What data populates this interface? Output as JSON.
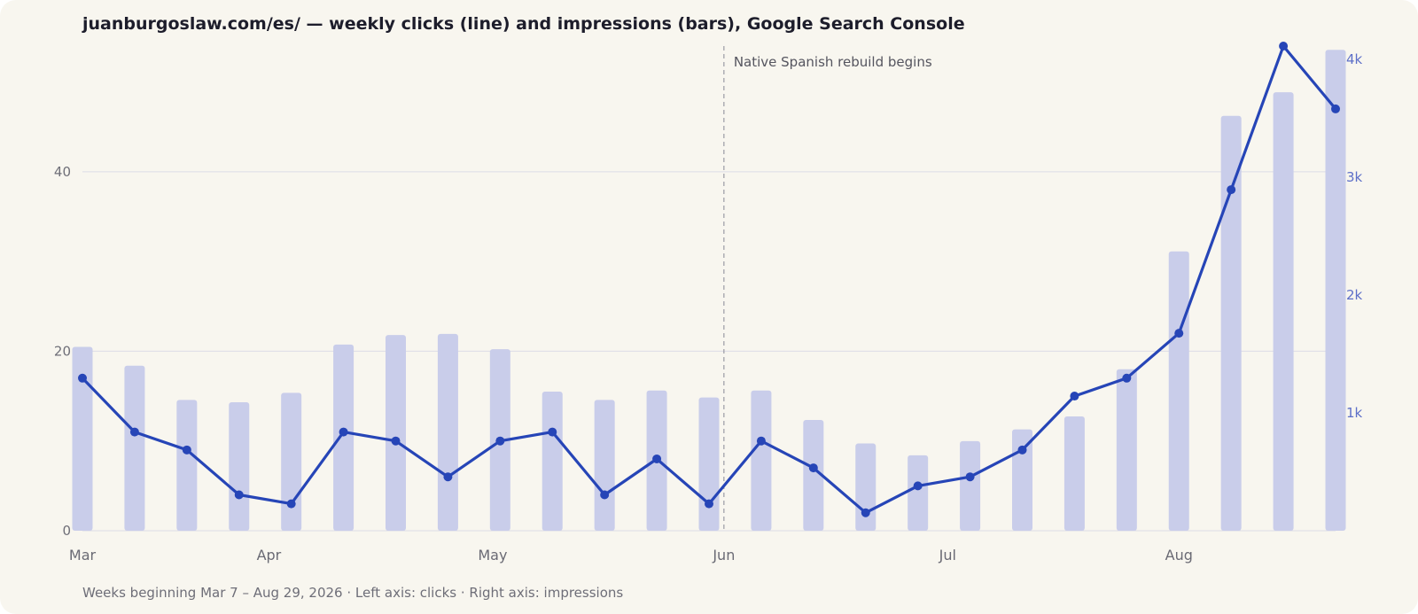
{
  "title": "juanburgoslaw.com/es/ — weekly clicks (line) and impressions (bars), Google Search Console",
  "footnote": "Weeks beginning Mar 7 – Aug 29, 2026 · Left axis: clicks · Right axis: impressions",
  "colors": {
    "background": "#f8f6ef",
    "line": "#2645b7",
    "bar": "#c9cdea",
    "grid": "#dcdce6",
    "right_axis": "#5d6fc8"
  },
  "chart_data": {
    "type": "bar",
    "title": "juanburgoslaw.com/es/ — weekly clicks (line) and impressions (bars), Google Search Console",
    "weeks": [
      "2026-03-07",
      "2026-03-14",
      "2026-03-21",
      "2026-03-28",
      "2026-04-04",
      "2026-04-11",
      "2026-04-18",
      "2026-04-25",
      "2026-05-02",
      "2026-05-09",
      "2026-05-16",
      "2026-05-23",
      "2026-05-30",
      "2026-06-06",
      "2026-06-13",
      "2026-06-20",
      "2026-06-27",
      "2026-07-04",
      "2026-07-11",
      "2026-07-18",
      "2026-07-25",
      "2026-08-01",
      "2026-08-08",
      "2026-08-15",
      "2026-08-22"
    ],
    "series": [
      {
        "name": "impressions",
        "type": "bar",
        "axis": "right",
        "values": [
          1560,
          1400,
          1110,
          1090,
          1170,
          1580,
          1660,
          1670,
          1540,
          1180,
          1110,
          1190,
          1130,
          1190,
          940,
          740,
          640,
          760,
          860,
          970,
          1370,
          2370,
          3520,
          3720,
          4080
        ]
      },
      {
        "name": "clicks",
        "type": "line",
        "axis": "left",
        "values": [
          17,
          11,
          9,
          4,
          3,
          11,
          10,
          6,
          10,
          11,
          4,
          8,
          3,
          10,
          7,
          2,
          5,
          6,
          9,
          15,
          17,
          22,
          38,
          54,
          47
        ]
      }
    ],
    "x_tick_labels": [
      "Mar",
      "Apr",
      "May",
      "Jun",
      "Jul",
      "Aug"
    ],
    "left_axis": {
      "ticks": [
        0,
        20,
        40
      ],
      "ylim": [
        0,
        54
      ]
    },
    "right_axis": {
      "ticks": [
        1000,
        2000,
        3000,
        4000
      ],
      "tick_labels": [
        "1k",
        "2k",
        "3k",
        "4k"
      ],
      "ylim": [
        0,
        4112
      ]
    },
    "annotation": {
      "date": "2026-06-01",
      "label": "Native Spanish rebuild begins"
    },
    "grid": true,
    "legend": "none"
  }
}
